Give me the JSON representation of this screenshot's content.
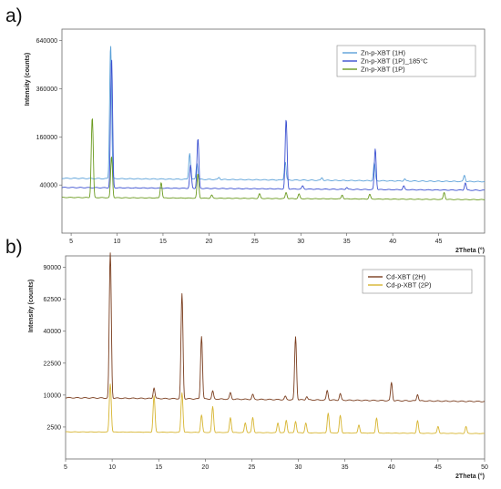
{
  "panels": [
    {
      "id": "a",
      "label": "a)"
    },
    {
      "id": "b",
      "label": "b)"
    }
  ],
  "chart_data": [
    {
      "type": "line",
      "panel": "a)",
      "ylabel": "Intensity (counts)",
      "xlabel": "2Theta (°)",
      "xlim": [
        4,
        50
      ],
      "x_ticks": [
        5,
        10,
        15,
        20,
        25,
        30,
        35,
        40,
        45
      ],
      "y_ticks": [
        40000,
        160000,
        360000,
        640000
      ],
      "y_tick_labels": [
        "40000",
        "160000",
        "360000",
        "640000"
      ],
      "y_scale": "sqrt",
      "legend_position": "top-right",
      "series": [
        {
          "name": "Zn-p-XBT (1H)",
          "color": "#5aa0d8",
          "offset": 52000,
          "peaks": [
            [
              9.3,
              560000
            ],
            [
              17.9,
              60000
            ],
            [
              18.7,
              35000
            ],
            [
              21.1,
              4000
            ],
            [
              28.3,
              40000
            ],
            [
              32.3,
              5000
            ],
            [
              38.0,
              38000
            ],
            [
              41.3,
              4000
            ],
            [
              47.8,
              12000
            ]
          ]
        },
        {
          "name": "Zn-p-XBT (1P)_185°C",
          "color": "#3a4fd0",
          "offset": 36000,
          "peaks": [
            [
              9.4,
              490000
            ],
            [
              18.0,
              45000
            ],
            [
              18.8,
              120000
            ],
            [
              28.4,
              190000
            ],
            [
              30.2,
              5000
            ],
            [
              35.0,
              3000
            ],
            [
              38.1,
              90000
            ],
            [
              41.2,
              6000
            ],
            [
              47.9,
              12000
            ]
          ]
        },
        {
          "name": "Zn-p-XBT (1P)",
          "color": "#6a9a1e",
          "offset": 22000,
          "peaks": [
            [
              7.3,
              210000
            ],
            [
              9.4,
              80000
            ],
            [
              14.8,
              23000
            ],
            [
              18.8,
              40000
            ],
            [
              20.3,
              4000
            ],
            [
              25.5,
              6000
            ],
            [
              28.4,
              8000
            ],
            [
              29.8,
              6000
            ],
            [
              34.5,
              5000
            ],
            [
              37.5,
              6000
            ],
            [
              45.6,
              9000
            ]
          ]
        }
      ]
    },
    {
      "type": "line",
      "panel": "b)",
      "ylabel": "Intensity (counts)",
      "xlabel": "2Theta (°)",
      "xlim": [
        5,
        50
      ],
      "x_ticks": [
        5,
        10,
        15,
        20,
        25,
        30,
        35,
        40,
        45,
        50
      ],
      "y_ticks": [
        2500,
        10000,
        22500,
        40000,
        62500,
        90000
      ],
      "y_tick_labels": [
        "2500",
        "10000",
        "22500",
        "40000",
        "62500",
        "90000"
      ],
      "y_scale": "sqrt",
      "legend_position": "top-right",
      "series": [
        {
          "name": "Cd-XBT (2H)",
          "color": "#7a3d1e",
          "offset": 9200,
          "peaks": [
            [
              9.8,
              95000
            ],
            [
              14.5,
              3500
            ],
            [
              17.5,
              58000
            ],
            [
              19.6,
              28000
            ],
            [
              20.8,
              2500
            ],
            [
              22.7,
              2000
            ],
            [
              25.1,
              1500
            ],
            [
              28.6,
              1000
            ],
            [
              29.7,
              28000
            ],
            [
              30.9,
              1000
            ],
            [
              33.1,
              3000
            ],
            [
              34.5,
              2000
            ],
            [
              40.0,
              6000
            ],
            [
              42.8,
              2000
            ]
          ]
        },
        {
          "name": "Cd-p-XBT (2P)",
          "color": "#d7b531",
          "offset": 1800,
          "peaks": [
            [
              9.8,
              12000
            ],
            [
              14.5,
              8000
            ],
            [
              17.5,
              9000
            ],
            [
              19.6,
              3000
            ],
            [
              20.8,
              5000
            ],
            [
              22.7,
              2500
            ],
            [
              24.3,
              1500
            ],
            [
              25.1,
              2500
            ],
            [
              27.8,
              1500
            ],
            [
              28.7,
              2000
            ],
            [
              29.7,
              1800
            ],
            [
              30.8,
              1500
            ],
            [
              33.2,
              3500
            ],
            [
              34.5,
              3000
            ],
            [
              36.5,
              1200
            ],
            [
              38.4,
              2500
            ],
            [
              42.8,
              2000
            ],
            [
              45.0,
              1000
            ],
            [
              48.0,
              1000
            ]
          ]
        }
      ]
    }
  ]
}
